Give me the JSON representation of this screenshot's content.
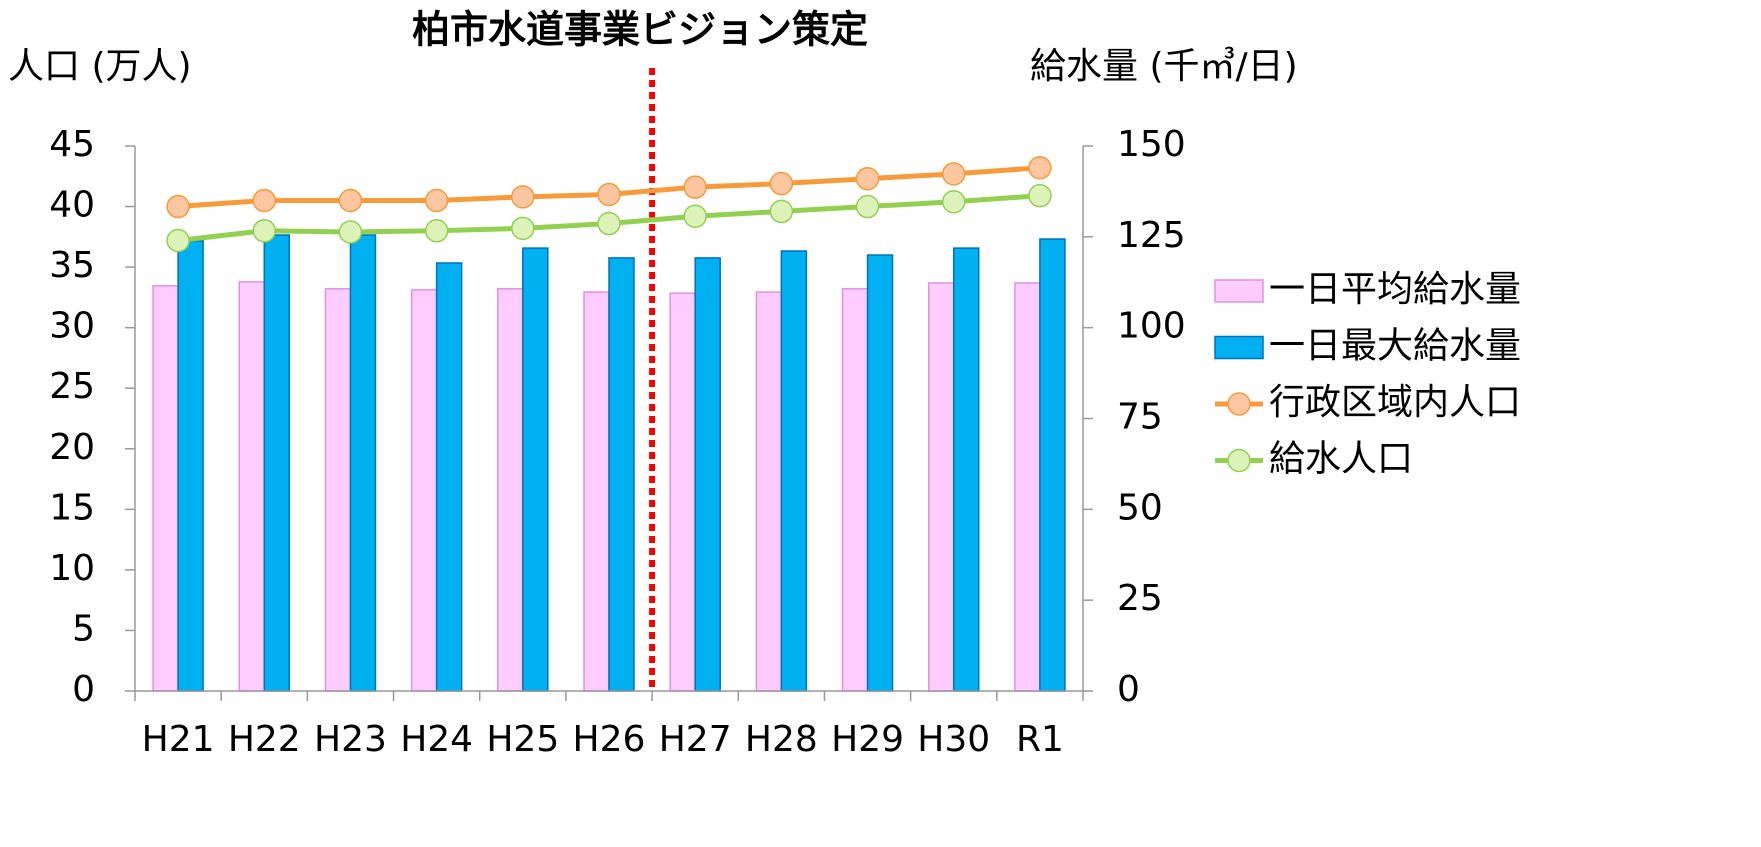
{
  "chart_data": {
    "type": "bar",
    "annotation": "柏市水道事業ビジョン策定",
    "y_label": "人口 (万人)",
    "y2_label": "給水量 (千㎥/日)",
    "categories": [
      "H21",
      "H22",
      "H23",
      "H24",
      "H25",
      "H26",
      "H27",
      "H28",
      "H29",
      "H30",
      "R1"
    ],
    "series": [
      {
        "name": "一日平均給水量",
        "type": "bar",
        "axis": "y2",
        "color": "#ffccff",
        "edge": "#e28fe2",
        "values": [
          111.5,
          112.6,
          110.7,
          110.4,
          110.7,
          109.8,
          109.5,
          109.8,
          110.7,
          112.3,
          112.3
        ]
      },
      {
        "name": "一日最大給水量",
        "type": "bar",
        "axis": "y2",
        "color": "#00b0f0",
        "edge": "#0070c0",
        "values": [
          123.9,
          125.5,
          125.5,
          117.8,
          121.9,
          119.2,
          119.2,
          121.1,
          120.0,
          121.9,
          124.4
        ]
      },
      {
        "name": "行政区域内人口",
        "type": "line",
        "axis": "y",
        "color": "#f79a3a",
        "marker": "#fbc6a0",
        "values": [
          40.0,
          40.5,
          40.5,
          40.5,
          40.8,
          41.0,
          41.6,
          41.9,
          42.3,
          42.7,
          43.2
        ]
      },
      {
        "name": "給水人口",
        "type": "line",
        "axis": "y",
        "color": "#92d050",
        "marker": "#dcf2b8",
        "values": [
          37.2,
          38.0,
          37.9,
          38.0,
          38.2,
          38.6,
          39.2,
          39.6,
          40.0,
          40.4,
          40.9
        ]
      }
    ],
    "ylim": [
      0,
      45
    ],
    "yticks": [
      0,
      5,
      10,
      15,
      20,
      25,
      30,
      35,
      40,
      45
    ],
    "y2lim": [
      0,
      150
    ],
    "y2ticks": [
      0,
      25,
      50,
      75,
      100,
      125,
      150
    ],
    "grid": false,
    "legend": "right"
  }
}
